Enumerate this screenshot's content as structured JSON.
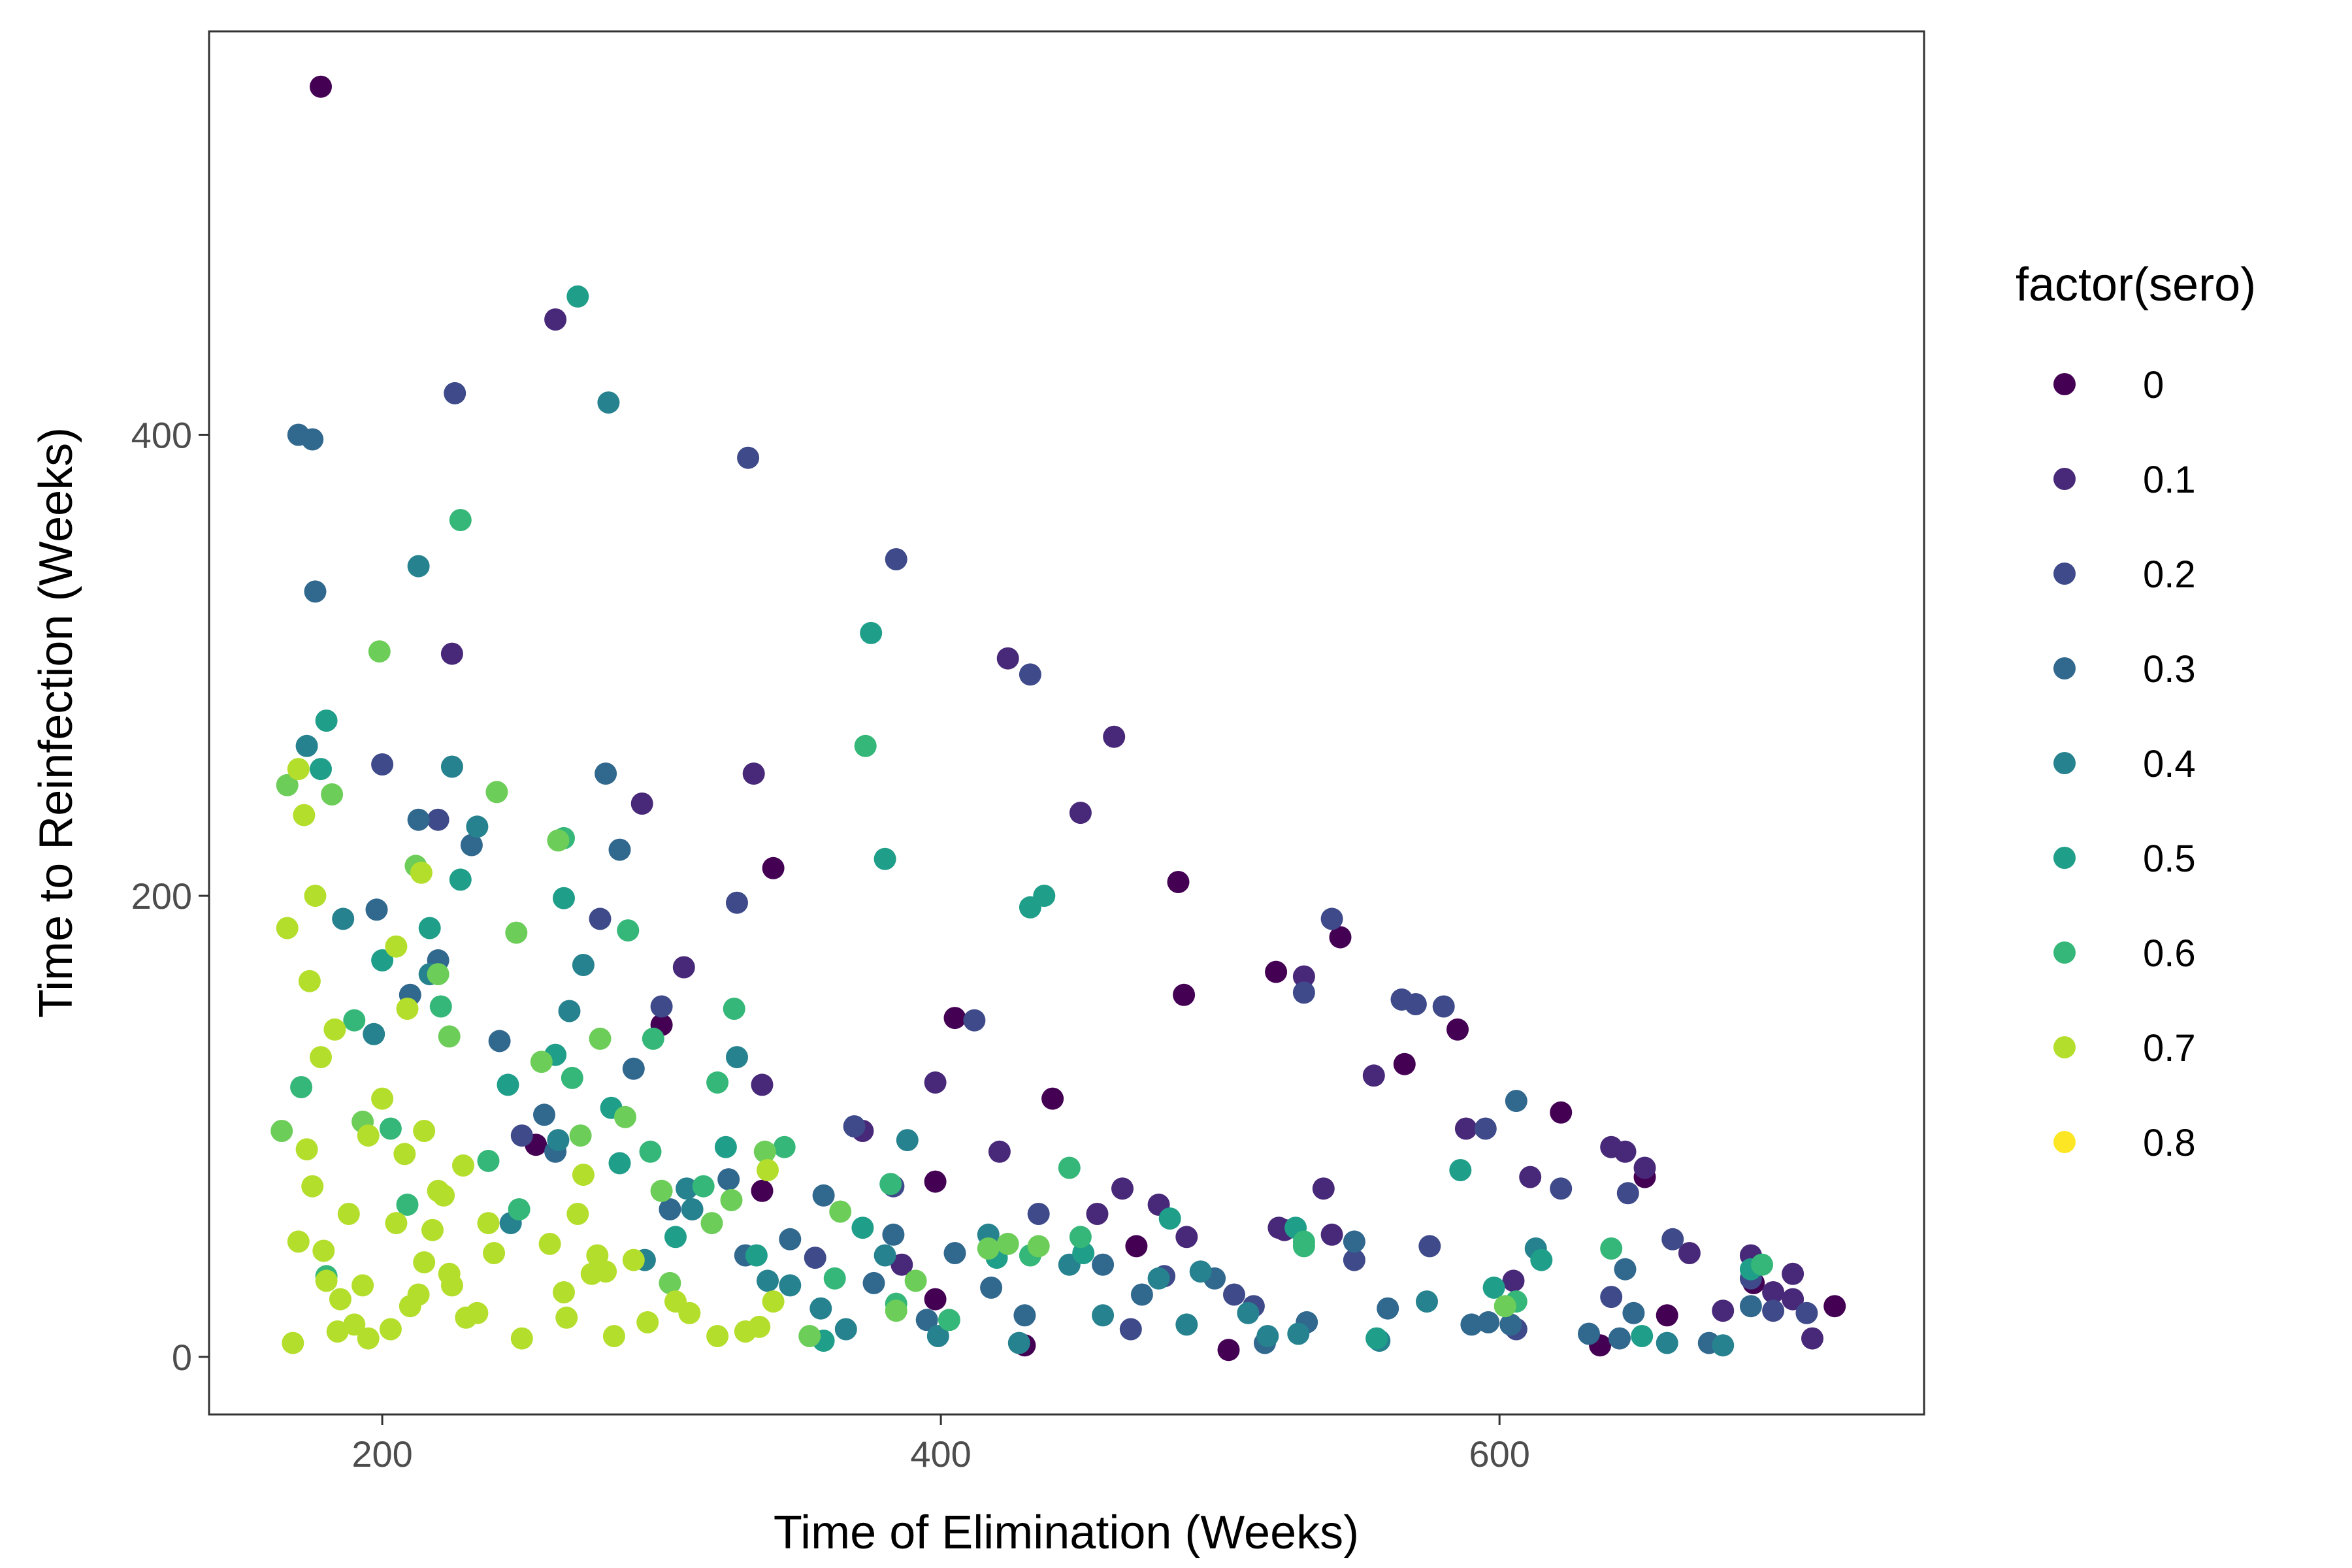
{
  "chart_data": {
    "type": "scatter",
    "title": "",
    "xlabel": "Time of Elimination (Weeks)",
    "ylabel": "Time to Reinfection (Weeks)",
    "xlim": [
      138,
      752
    ],
    "ylim": [
      -25,
      575
    ],
    "x_ticks": [
      200,
      400,
      600
    ],
    "y_ticks": [
      0,
      200,
      400
    ],
    "grid": false,
    "legend": {
      "title": "factor(sero)",
      "placement": "right"
    },
    "series": [
      {
        "name": "0",
        "color": "#440154",
        "x": [
          178,
          340,
          300,
          405,
          485,
          398,
          430,
          520,
          543,
          566,
          585,
          622,
          652,
          691,
          720,
          660,
          636,
          398,
          503,
          440,
          487,
          470,
          255,
          336
        ],
        "y": [
          551,
          212,
          144,
          147,
          206,
          25,
          5,
          167,
          182,
          127,
          142,
          106,
          78,
          32,
          22,
          18,
          5,
          76,
          3,
          112,
          157,
          48,
          92,
          72
        ]
      },
      {
        "name": "0.1",
        "color": "#482878",
        "x": [
          262,
          225,
          293,
          333,
          424,
          450,
          462,
          372,
          398,
          478,
          523,
          530,
          537,
          555,
          588,
          611,
          645,
          668,
          690,
          705,
          308,
          336,
          386,
          421,
          456,
          465,
          488,
          521,
          540,
          605,
          640,
          652,
          680,
          698,
          705,
          712
        ],
        "y": [
          450,
          305,
          240,
          253,
          303,
          236,
          269,
          98,
          119,
          66,
          55,
          165,
          73,
          122,
          99,
          78,
          89,
          45,
          44,
          36,
          169,
          118,
          40,
          89,
          62,
          73,
          52,
          56,
          53,
          33,
          91,
          82,
          20,
          28,
          25,
          8
        ]
      },
      {
        "name": "0.2",
        "color": "#3e4a89",
        "x": [
          226,
          331,
          384,
          432,
          512,
          540,
          565,
          570,
          646,
          580,
          595,
          622,
          200,
          220,
          250,
          278,
          300,
          327,
          355,
          369,
          383,
          412,
          435,
          468,
          480,
          505,
          530,
          548,
          575,
          606,
          640,
          662,
          690,
          698,
          710
        ],
        "y": [
          418,
          390,
          346,
          296,
          22,
          190,
          155,
          153,
          71,
          152,
          99,
          73,
          257,
          233,
          96,
          190,
          152,
          197,
          43,
          100,
          74,
          146,
          62,
          12,
          35,
          27,
          158,
          42,
          48,
          12,
          26,
          51,
          34,
          20,
          19
        ]
      },
      {
        "name": "0.3",
        "color": "#31688e",
        "x": [
          170,
          175,
          176,
          213,
          220,
          258,
          280,
          285,
          290,
          324,
          358,
          383,
          405,
          418,
          458,
          498,
          531,
          560,
          590,
          604,
          632,
          643,
          648,
          690,
          198,
          210,
          232,
          242,
          262,
          303,
          330,
          346,
          376,
          395,
          430,
          472,
          516,
          548,
          596,
          606,
          645,
          675
        ],
        "y": [
          400,
          398,
          332,
          233,
          172,
          105,
          253,
          220,
          125,
          77,
          70,
          53,
          45,
          30,
          40,
          34,
          15,
          21,
          14,
          14,
          10,
          8,
          19,
          22,
          194,
          157,
          222,
          137,
          89,
          64,
          44,
          51,
          32,
          16,
          18,
          27,
          6,
          50,
          15,
          111,
          38,
          6
        ]
      },
      {
        "name": "0.4",
        "color": "#26828e",
        "x": [
          281,
          213,
          225,
          173,
          186,
          234,
          267,
          272,
          311,
          327,
          346,
          366,
          388,
          417,
          446,
          478,
          493,
          510,
          528,
          557,
          574,
          613,
          660,
          680,
          197,
          217,
          246,
          263,
          294,
          309,
          338,
          357,
          380,
          399,
          428,
          458,
          488,
          517
        ],
        "y": [
          414,
          343,
          256,
          265,
          190,
          230,
          150,
          170,
          64,
          130,
          31,
          12,
          94,
          53,
          40,
          34,
          37,
          19,
          10,
          7,
          24,
          47,
          6,
          5,
          140,
          166,
          58,
          94,
          42,
          73,
          33,
          21,
          44,
          9,
          6,
          18,
          14,
          9
        ]
      },
      {
        "name": "0.5",
        "color": "#1f9e89",
        "x": [
          270,
          375,
          228,
          265,
          282,
          323,
          380,
          432,
          437,
          527,
          586,
          615,
          180,
          178,
          200,
          217,
          245,
          262,
          285,
          305,
          334,
          358,
          372,
          420,
          451,
          482,
          556,
          598,
          651,
          690
        ],
        "y": [
          460,
          314,
          207,
          199,
          108,
          91,
          216,
          195,
          200,
          56,
          81,
          42,
          276,
          255,
          172,
          186,
          118,
          131,
          84,
          52,
          44,
          7,
          56,
          43,
          45,
          60,
          8,
          30,
          9,
          38
        ]
      },
      {
        "name": "0.6",
        "color": "#35b779",
        "x": [
          228,
          373,
          265,
          288,
          326,
          446,
          530,
          606,
          640,
          171,
          190,
          203,
          221,
          249,
          268,
          297,
          315,
          344,
          362,
          384,
          403,
          432,
          450,
          530,
          694,
          180,
          209,
          238,
          296,
          320,
          382
        ],
        "y": [
          363,
          265,
          225,
          185,
          151,
          82,
          50,
          24,
          47,
          117,
          146,
          99,
          152,
          64,
          121,
          138,
          74,
          91,
          34,
          23,
          16,
          44,
          52,
          48,
          40,
          35,
          66,
          85,
          89,
          119,
          75
        ]
      },
      {
        "name": "0.7",
        "color": "#6dcd59",
        "x": [
          199,
          166,
          182,
          241,
          263,
          271,
          287,
          212,
          224,
          257,
          300,
          318,
          337,
          364,
          391,
          417,
          435,
          164,
          193,
          220,
          248,
          278,
          303,
          325,
          353,
          384,
          424,
          602
        ],
        "y": [
          306,
          248,
          244,
          245,
          224,
          96,
          104,
          213,
          139,
          128,
          72,
          58,
          89,
          63,
          33,
          47,
          48,
          98,
          102,
          166,
          184,
          138,
          32,
          68,
          9,
          20,
          49,
          22
        ]
      },
      {
        "name": "0.8",
        "color": "#b4de2c",
        "x": [
          170,
          172,
          174,
          176,
          178,
          166,
          214,
          209,
          205,
          215,
          195,
          183,
          200,
          222,
          238,
          260,
          275,
          290,
          310,
          330,
          338,
          170,
          175,
          180,
          185,
          190,
          195,
          205,
          210,
          215,
          220,
          225,
          230,
          240,
          250,
          265,
          270,
          280,
          295,
          305,
          320,
          335,
          340,
          168,
          173,
          179,
          184,
          188,
          193,
          203,
          208,
          213,
          218,
          224,
          229,
          234,
          266,
          272,
          277,
          283
        ],
        "y": [
          255,
          235,
          163,
          200,
          130,
          186,
          210,
          151,
          178,
          98,
          96,
          142,
          112,
          70,
          58,
          49,
          36,
          42,
          19,
          11,
          81,
          50,
          74,
          33,
          25,
          14,
          8,
          58,
          22,
          41,
          72,
          31,
          17,
          45,
          8,
          28,
          62,
          37,
          15,
          24,
          9,
          13,
          24,
          6,
          90,
          46,
          11,
          62,
          31,
          12,
          88,
          27,
          55,
          36,
          83,
          19,
          17,
          79,
          44,
          9
        ]
      },
      {
        "name": "0.8 (yellow)",
        "color": "#fde725",
        "x": [],
        "y": []
      }
    ]
  },
  "legend_items": [
    "0",
    "0.1",
    "0.2",
    "0.3",
    "0.4",
    "0.5",
    "0.6",
    "0.7",
    "0.8"
  ],
  "legend_colors": [
    "#440154",
    "#482878",
    "#3e4a89",
    "#31688e",
    "#26828e",
    "#1f9e89",
    "#35b779",
    "#b4de2c",
    "#fde725"
  ]
}
